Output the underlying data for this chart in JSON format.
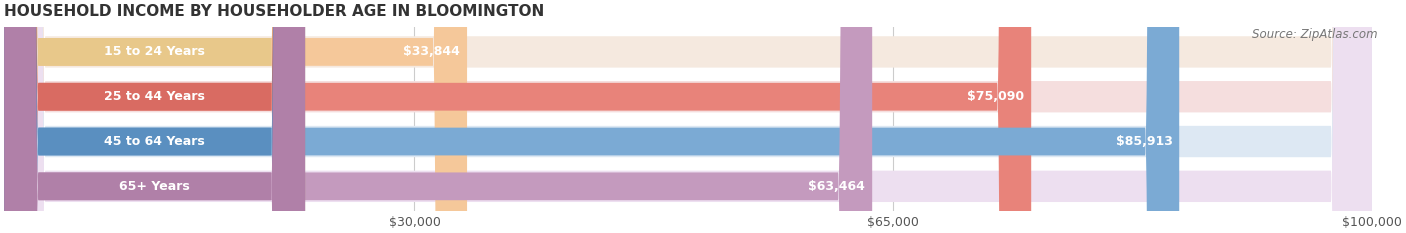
{
  "title": "HOUSEHOLD INCOME BY HOUSEHOLDER AGE IN BLOOMINGTON",
  "source": "Source: ZipAtlas.com",
  "categories": [
    "15 to 24 Years",
    "25 to 44 Years",
    "45 to 64 Years",
    "65+ Years"
  ],
  "values": [
    33844,
    75090,
    85913,
    63464
  ],
  "bar_colors": [
    "#f5c89a",
    "#e8837a",
    "#7baad4",
    "#c49abe"
  ],
  "row_bg_colors": [
    "#f5e9df",
    "#f5dede",
    "#dde8f3",
    "#eddff0"
  ],
  "label_bg_colors": [
    "#e8c88a",
    "#d96b62",
    "#5a8fc0",
    "#b080a8"
  ],
  "value_labels": [
    "$33,844",
    "$75,090",
    "$85,913",
    "$63,464"
  ],
  "xlim": [
    0,
    100000
  ],
  "xticks": [
    30000,
    65000,
    100000
  ],
  "xticklabels": [
    "$30,000",
    "$65,000",
    "$100,000"
  ],
  "title_fontsize": 11,
  "source_fontsize": 8.5,
  "bar_label_fontsize": 9,
  "tick_fontsize": 9
}
